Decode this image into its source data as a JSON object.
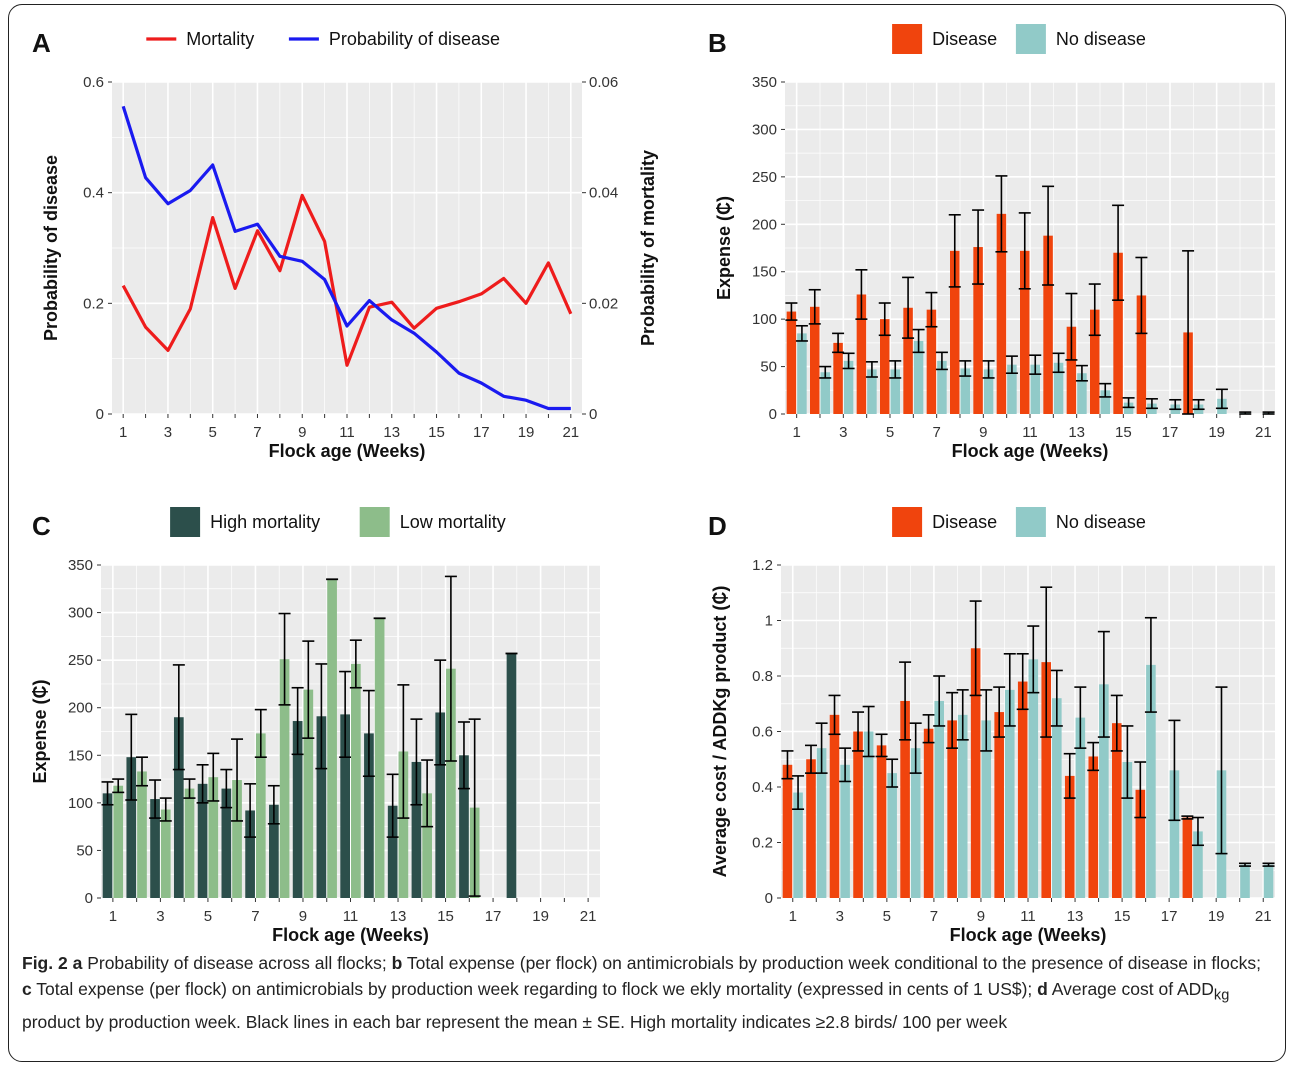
{
  "chart_data": [
    {
      "panel": "A",
      "type": "line",
      "x": [
        1,
        2,
        3,
        4,
        5,
        6,
        7,
        8,
        9,
        10,
        11,
        12,
        13,
        14,
        15,
        16,
        17,
        18,
        19,
        20,
        21
      ],
      "x_ticks": [
        "1",
        "3",
        "5",
        "7",
        "9",
        "11",
        "13",
        "15",
        "17",
        "19",
        "21"
      ],
      "xlabel": "Flock age (Weeks)",
      "ylabel": "Probability of disease",
      "ylabel_right": "Probability of mortality",
      "ylim": [
        0,
        0.6
      ],
      "ylim_right": [
        0,
        0.06
      ],
      "yticks": [
        "0",
        "0.2",
        "0.4",
        "0.6"
      ],
      "yticks_right": [
        "0",
        "0.02",
        "0.04",
        "0.06"
      ],
      "legend_position": "top",
      "grid": true,
      "series": [
        {
          "name": "Mortality",
          "axis": "right",
          "color": "#ee1c1c",
          "values": [
            0.0232,
            0.0157,
            0.0115,
            0.019,
            0.0355,
            0.0227,
            0.0331,
            0.0259,
            0.0395,
            0.0312,
            0.0088,
            0.0193,
            0.0202,
            0.0155,
            0.0191,
            0.0203,
            0.0217,
            0.0245,
            0.02,
            0.0273,
            0.0181
          ]
        },
        {
          "name": "Probability of disease",
          "axis": "left",
          "color": "#1a1af0",
          "values": [
            0.556,
            0.427,
            0.38,
            0.404,
            0.45,
            0.33,
            0.343,
            0.285,
            0.276,
            0.243,
            0.159,
            0.205,
            0.17,
            0.146,
            0.112,
            0.074,
            0.056,
            0.032,
            0.025,
            0.01,
            0.01
          ]
        }
      ]
    },
    {
      "panel": "B",
      "type": "bar",
      "categories": [
        1,
        2,
        3,
        4,
        5,
        6,
        7,
        8,
        9,
        10,
        11,
        12,
        13,
        14,
        15,
        16,
        17,
        18,
        19,
        20,
        21
      ],
      "x_ticks": [
        "1",
        "3",
        "5",
        "7",
        "9",
        "11",
        "13",
        "15",
        "17",
        "19",
        "21"
      ],
      "xlabel": "Flock age (Weeks)",
      "ylabel": "Expense (₵)",
      "ylim": [
        0,
        350
      ],
      "yticks": [
        "0",
        "50",
        "100",
        "150",
        "200",
        "250",
        "300",
        "350"
      ],
      "legend_position": "top",
      "grid": true,
      "series": [
        {
          "name": "Disease",
          "color": "#f0440d",
          "values": [
            108,
            113,
            75,
            126,
            100,
            112,
            110,
            172,
            176,
            211,
            172,
            188,
            92,
            110,
            170,
            125,
            0,
            86,
            0,
            0,
            0
          ],
          "errors": [
            9,
            18,
            10,
            26,
            17,
            32,
            18,
            38,
            39,
            40,
            40,
            52,
            35,
            27,
            50,
            40,
            0,
            86,
            0,
            0,
            0
          ]
        },
        {
          "name": "No disease",
          "color": "#91cac8",
          "values": [
            85,
            44,
            56,
            47,
            47,
            77,
            56,
            48,
            47,
            52,
            52,
            54,
            43,
            25,
            12,
            11,
            10,
            10,
            16,
            1,
            1
          ],
          "errors": [
            8,
            6,
            8,
            8,
            9,
            12,
            9,
            8,
            9,
            9,
            10,
            10,
            8,
            7,
            5,
            5,
            5,
            5,
            10,
            1,
            1
          ]
        }
      ]
    },
    {
      "panel": "C",
      "type": "bar",
      "categories": [
        1,
        2,
        3,
        4,
        5,
        6,
        7,
        8,
        9,
        10,
        11,
        12,
        13,
        14,
        15,
        16,
        17,
        18,
        19,
        20,
        21
      ],
      "x_ticks": [
        "1",
        "3",
        "5",
        "7",
        "9",
        "11",
        "13",
        "15",
        "17",
        "19",
        "21"
      ],
      "xlabel": "Flock age (Weeks)",
      "ylabel": "Expense (₵)",
      "ylim": [
        0,
        350
      ],
      "yticks": [
        "0",
        "50",
        "100",
        "150",
        "200",
        "250",
        "300",
        "350"
      ],
      "legend_position": "top",
      "grid": true,
      "series": [
        {
          "name": "High mortality",
          "color": "#2c4f4b",
          "values": [
            110,
            148,
            104,
            190,
            120,
            115,
            92,
            98,
            186,
            191,
            193,
            173,
            97,
            143,
            195,
            150,
            0,
            257,
            0,
            0,
            0
          ],
          "errors": [
            12,
            45,
            20,
            55,
            20,
            20,
            28,
            20,
            35,
            55,
            45,
            45,
            33,
            45,
            55,
            35,
            0,
            0,
            0,
            0,
            0
          ]
        },
        {
          "name": "Low mortality",
          "color": "#8dbd8a",
          "values": [
            118,
            133,
            93,
            115,
            127,
            124,
            173,
            251,
            219,
            335,
            246,
            294,
            154,
            110,
            241,
            95,
            0,
            0,
            0,
            0,
            0
          ],
          "errors": [
            7,
            15,
            12,
            10,
            25,
            43,
            25,
            48,
            51,
            0,
            25,
            0,
            70,
            35,
            97,
            93,
            0,
            0,
            0,
            0,
            0
          ]
        }
      ]
    },
    {
      "panel": "D",
      "type": "bar",
      "categories": [
        1,
        2,
        3,
        4,
        5,
        6,
        7,
        8,
        9,
        10,
        11,
        12,
        13,
        14,
        15,
        16,
        17,
        18,
        19,
        20,
        21
      ],
      "x_ticks": [
        "1",
        "3",
        "5",
        "7",
        "9",
        "11",
        "13",
        "15",
        "17",
        "19",
        "21"
      ],
      "xlabel": "Flock age (Weeks)",
      "ylabel": "Average cost / ADDKg product (₵)",
      "ylim": [
        0,
        1.2
      ],
      "yticks": [
        "0",
        "0.2",
        "0.4",
        "0.6",
        "0.8",
        "1",
        "1.2"
      ],
      "legend_position": "top",
      "grid": true,
      "series": [
        {
          "name": "Disease",
          "color": "#f0440d",
          "values": [
            0.48,
            0.5,
            0.66,
            0.6,
            0.55,
            0.71,
            0.61,
            0.64,
            0.9,
            0.67,
            0.78,
            0.85,
            0.44,
            0.51,
            0.63,
            0.39,
            0,
            0.29,
            0,
            0,
            0
          ],
          "errors": [
            0.05,
            0.05,
            0.07,
            0.07,
            0.04,
            0.14,
            0.05,
            0.1,
            0.17,
            0.09,
            0.1,
            0.27,
            0.08,
            0.05,
            0.1,
            0.1,
            0,
            0.005,
            0,
            0,
            0
          ]
        },
        {
          "name": "No disease",
          "color": "#91cac8",
          "values": [
            0.38,
            0.54,
            0.48,
            0.6,
            0.45,
            0.54,
            0.71,
            0.66,
            0.64,
            0.75,
            0.86,
            0.72,
            0.65,
            0.77,
            0.49,
            0.84,
            0.46,
            0.24,
            0.46,
            0.12,
            0.12
          ],
          "errors": [
            0.06,
            0.09,
            0.06,
            0.09,
            0.05,
            0.09,
            0.09,
            0.09,
            0.11,
            0.13,
            0.12,
            0.1,
            0.11,
            0.19,
            0.13,
            0.17,
            0.18,
            0.05,
            0.3,
            0.005,
            0.005
          ]
        }
      ]
    }
  ],
  "caption": {
    "fig_label": "Fig. 2",
    "a_label": "a",
    "a_text": "Probability of disease across all flocks;",
    "b_label": "b",
    "b_text": "Total expense (per flock) on antimicrobials by production week conditional to the presence of disease in flocks;",
    "c_label": "c",
    "c_text": "Total expense (per flock) on antimicrobials by production week regarding to flock we ekly mortality (expressed in cents of 1 US$);",
    "d_label": "d",
    "d_text_1": "Average cost of ADD",
    "d_sub": "kg",
    "d_text_2": "product by production week. Black lines in each bar represent the mean ± SE. High mortality indicates ≥2.8 birds/ 100 per week"
  }
}
